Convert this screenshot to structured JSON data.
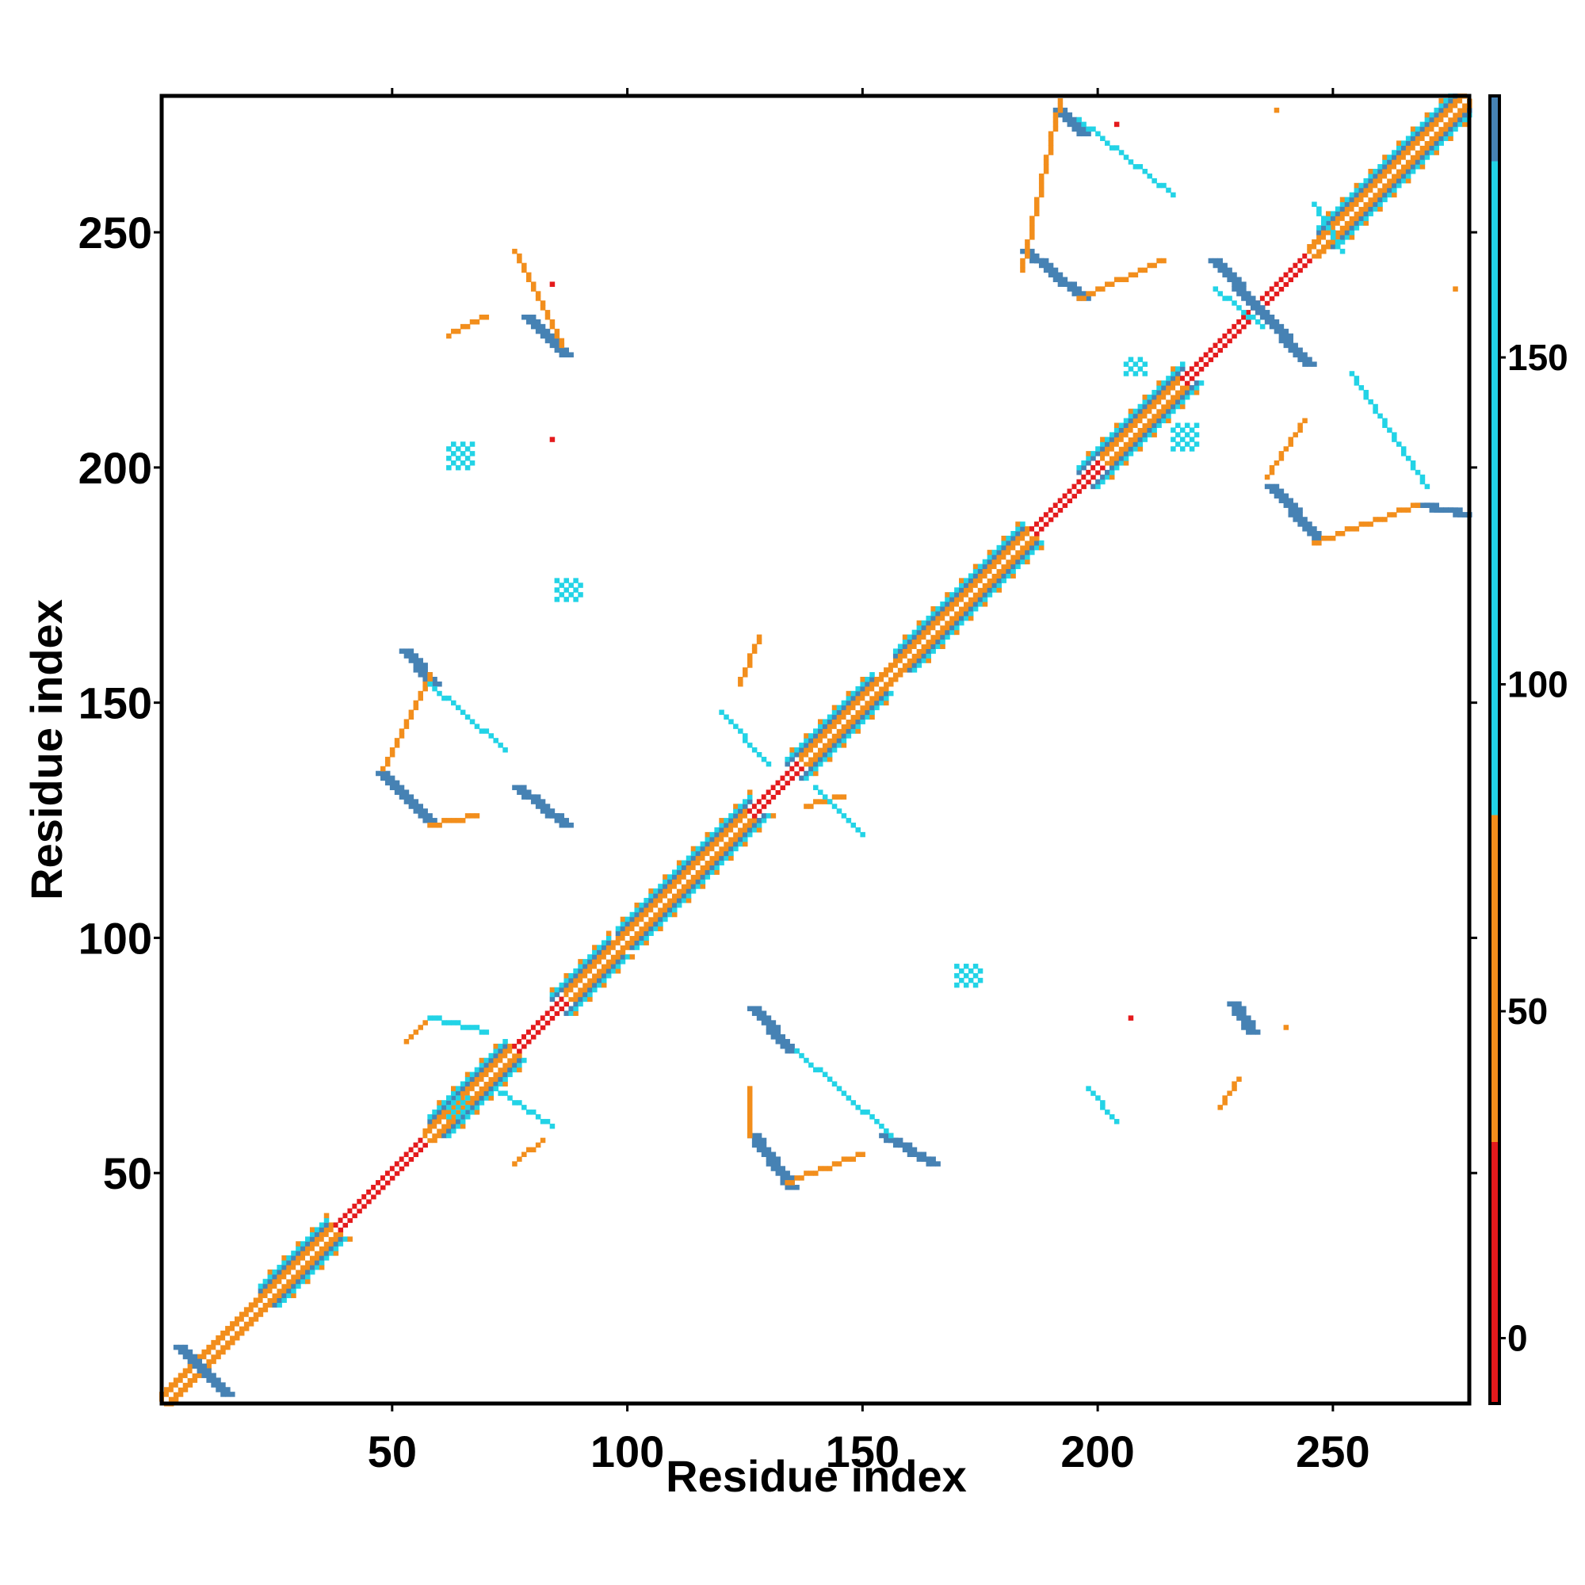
{
  "chart_data": {
    "type": "heatmap",
    "title": "",
    "xlabel": "Residue index",
    "ylabel": "Residue index",
    "xlim": [
      1,
      279
    ],
    "ylim": [
      1,
      279
    ],
    "x_ticks": [
      50,
      100,
      150,
      200,
      250
    ],
    "y_ticks": [
      50,
      100,
      150,
      200,
      250
    ],
    "colorbar": {
      "range": [
        -10,
        190
      ],
      "ticks": [
        0,
        50,
        100,
        150
      ],
      "segments": [
        {
          "from": -10,
          "to": 30,
          "color": "#e41a1c"
        },
        {
          "from": 30,
          "to": 80,
          "color": "#f28e1c"
        },
        {
          "from": 80,
          "to": 180,
          "color": "#22d3e6"
        },
        {
          "from": 180,
          "to": 190,
          "color": "#4682b4"
        }
      ]
    },
    "colors": {
      "red": "#e41a1c",
      "orange": "#f28e1c",
      "cyan": "#22d3e6",
      "steel": "#4682b4"
    },
    "diagonal": {
      "from": 1,
      "to": 279,
      "helix_bands": [
        [
          22,
          36
        ],
        [
          58,
          74
        ],
        [
          84,
          96
        ],
        [
          98,
          116
        ],
        [
          117,
          126
        ],
        [
          134,
          152
        ],
        [
          157,
          184
        ],
        [
          196,
          218
        ],
        [
          247,
          278
        ]
      ],
      "red_segments": [
        [
          38,
          56
        ],
        [
          76,
          86
        ],
        [
          126,
          136
        ],
        [
          186,
          200
        ],
        [
          218,
          244
        ]
      ]
    },
    "contact_segments": [
      {
        "x1": 4,
        "y1": 13,
        "x2": 14,
        "y2": 3,
        "color": "steel"
      },
      {
        "x1": 126,
        "y1": 85,
        "x2": 134,
        "y2": 76,
        "color": "steel"
      },
      {
        "x1": 126,
        "y1": 58,
        "x2": 134,
        "y2": 47,
        "color": "steel"
      },
      {
        "x1": 154,
        "y1": 58,
        "x2": 164,
        "y2": 52,
        "color": "steel"
      },
      {
        "x1": 228,
        "y1": 86,
        "x2": 232,
        "y2": 80,
        "color": "steel"
      },
      {
        "x1": 52,
        "y1": 161,
        "x2": 58,
        "y2": 154,
        "color": "steel"
      },
      {
        "x1": 47,
        "y1": 135,
        "x2": 58,
        "y2": 124,
        "color": "steel"
      },
      {
        "x1": 76,
        "y1": 132,
        "x2": 86,
        "y2": 124,
        "color": "steel"
      },
      {
        "x1": 78,
        "y1": 232,
        "x2": 86,
        "y2": 224,
        "color": "steel"
      },
      {
        "x1": 191,
        "y1": 276,
        "x2": 196,
        "y2": 271,
        "color": "steel"
      },
      {
        "x1": 184,
        "y1": 246,
        "x2": 196,
        "y2": 236,
        "color": "steel"
      },
      {
        "x1": 224,
        "y1": 244,
        "x2": 244,
        "y2": 222,
        "color": "steel"
      },
      {
        "x1": 236,
        "y1": 196,
        "x2": 246,
        "y2": 185,
        "color": "steel"
      },
      {
        "x1": 268,
        "y1": 192,
        "x2": 278,
        "y2": 190,
        "color": "steel"
      },
      {
        "x1": 225,
        "y1": 238,
        "x2": 235,
        "y2": 230,
        "color": "cyan"
      },
      {
        "x1": 76,
        "y1": 246,
        "x2": 86,
        "y2": 226,
        "color": "orange"
      },
      {
        "x1": 126,
        "y1": 68,
        "x2": 126,
        "y2": 58,
        "color": "orange"
      },
      {
        "x1": 134,
        "y1": 48,
        "x2": 150,
        "y2": 54,
        "color": "orange"
      },
      {
        "x1": 48,
        "y1": 136,
        "x2": 58,
        "y2": 156,
        "color": "orange"
      },
      {
        "x1": 58,
        "y1": 124,
        "x2": 68,
        "y2": 126,
        "color": "orange"
      },
      {
        "x1": 184,
        "y1": 242,
        "x2": 192,
        "y2": 278,
        "color": "orange"
      },
      {
        "x1": 196,
        "y1": 236,
        "x2": 214,
        "y2": 244,
        "color": "orange"
      },
      {
        "x1": 236,
        "y1": 198,
        "x2": 244,
        "y2": 210,
        "color": "orange"
      },
      {
        "x1": 246,
        "y1": 184,
        "x2": 268,
        "y2": 192,
        "color": "orange"
      },
      {
        "x1": 226,
        "y1": 64,
        "x2": 230,
        "y2": 70,
        "color": "orange"
      },
      {
        "x1": 138,
        "y1": 128,
        "x2": 146,
        "y2": 130,
        "color": "orange"
      },
      {
        "x1": 124,
        "y1": 154,
        "x2": 128,
        "y2": 164,
        "color": "orange"
      },
      {
        "x1": 53,
        "y1": 78,
        "x2": 57,
        "y2": 82,
        "color": "orange"
      },
      {
        "x1": 76,
        "y1": 52,
        "x2": 82,
        "y2": 57,
        "color": "orange"
      },
      {
        "x1": 62,
        "y1": 228,
        "x2": 70,
        "y2": 232,
        "color": "orange"
      },
      {
        "x1": 58,
        "y1": 154,
        "x2": 74,
        "y2": 140,
        "color": "cyan"
      },
      {
        "x1": 136,
        "y1": 76,
        "x2": 156,
        "y2": 58,
        "color": "cyan"
      },
      {
        "x1": 196,
        "y1": 274,
        "x2": 216,
        "y2": 258,
        "color": "cyan"
      },
      {
        "x1": 254,
        "y1": 220,
        "x2": 270,
        "y2": 196,
        "color": "cyan"
      },
      {
        "x1": 58,
        "y1": 83,
        "x2": 70,
        "y2": 80,
        "color": "cyan"
      },
      {
        "x1": 72,
        "y1": 68,
        "x2": 84,
        "y2": 60,
        "color": "cyan"
      },
      {
        "x1": 198,
        "y1": 68,
        "x2": 204,
        "y2": 61,
        "color": "cyan"
      },
      {
        "x1": 246,
        "y1": 256,
        "x2": 252,
        "y2": 246,
        "color": "cyan"
      },
      {
        "x1": 120,
        "y1": 148,
        "x2": 130,
        "y2": 137,
        "color": "cyan"
      },
      {
        "x1": 140,
        "y1": 132,
        "x2": 150,
        "y2": 122,
        "color": "cyan"
      }
    ],
    "contact_clusters": [
      {
        "x": 62,
        "y": 200,
        "w": 6,
        "h": 6,
        "color": "cyan"
      },
      {
        "x": 85,
        "y": 172,
        "w": 6,
        "h": 5,
        "color": "cyan"
      },
      {
        "x": 170,
        "y": 90,
        "w": 6,
        "h": 5,
        "color": "cyan"
      },
      {
        "x": 62,
        "y": 62,
        "w": 5,
        "h": 5,
        "color": "cyan"
      },
      {
        "x": 216,
        "y": 204,
        "w": 6,
        "h": 6,
        "color": "cyan"
      },
      {
        "x": 206,
        "y": 220,
        "w": 5,
        "h": 4,
        "color": "cyan"
      }
    ],
    "isolated_points": [
      {
        "x": 84,
        "y": 239,
        "color": "red"
      },
      {
        "x": 84,
        "y": 206,
        "color": "red"
      },
      {
        "x": 207,
        "y": 83,
        "color": "red"
      },
      {
        "x": 240,
        "y": 81,
        "color": "orange"
      },
      {
        "x": 238,
        "y": 276,
        "color": "orange"
      },
      {
        "x": 276,
        "y": 238,
        "color": "orange"
      },
      {
        "x": 204,
        "y": 273,
        "color": "red"
      }
    ]
  }
}
